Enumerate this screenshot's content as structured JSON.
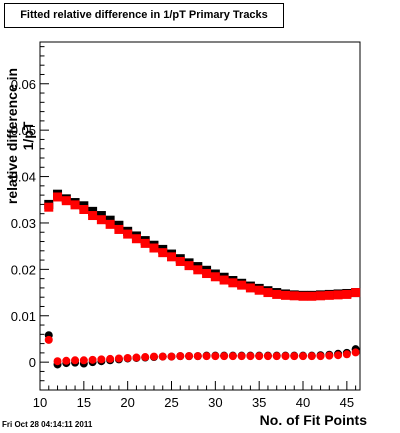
{
  "chart_data": {
    "type": "scatter",
    "title": "Fitted relative difference in 1/pT Primary Tracks",
    "xlabel": "No. of Fit Points",
    "ylabel": "relative difference in 1/pT",
    "xlim": [
      10,
      46.5
    ],
    "ylim": [
      -0.006,
      0.069
    ],
    "xticks": [
      10,
      15,
      20,
      25,
      30,
      35,
      40,
      45
    ],
    "xticklabels": [
      "10",
      "15",
      "20",
      "25",
      "30",
      "35",
      "40",
      "45"
    ],
    "yticks": [
      0,
      0.01,
      0.02,
      0.03,
      0.04,
      0.05,
      0.06
    ],
    "yticklabels": [
      "0",
      "0.01",
      "0.02",
      "0.03",
      "0.04",
      "0.05",
      "0.06"
    ],
    "grid": false,
    "legend": "none",
    "series": [
      {
        "color": "#000000",
        "x": [
          11,
          12,
          13,
          14,
          15,
          16,
          17,
          18,
          19,
          20,
          21,
          22,
          23,
          24,
          25,
          26,
          27,
          28,
          29,
          30,
          31,
          32,
          33,
          34,
          35,
          36,
          37,
          38,
          39,
          40,
          41,
          42,
          43,
          44,
          45,
          46
        ],
        "values": [
          0.034,
          0.0362,
          0.0352,
          0.0344,
          0.0337,
          0.0325,
          0.0316,
          0.0306,
          0.0295,
          0.0282,
          0.0272,
          0.0262,
          0.0252,
          0.0243,
          0.0233,
          0.0223,
          0.0214,
          0.0206,
          0.0198,
          0.019,
          0.0183,
          0.0176,
          0.017,
          0.0164,
          0.0159,
          0.0154,
          0.015,
          0.0147,
          0.0145,
          0.0144,
          0.0144,
          0.0145,
          0.0146,
          0.0147,
          0.0148,
          0.015
        ]
      },
      {
        "color": "#ff0000",
        "x": [
          11,
          12,
          13,
          14,
          15,
          16,
          17,
          18,
          19,
          20,
          21,
          22,
          23,
          24,
          25,
          26,
          27,
          28,
          29,
          30,
          31,
          32,
          33,
          34,
          35,
          36,
          37,
          38,
          39,
          40,
          41,
          42,
          43,
          44,
          45,
          46
        ],
        "values": [
          0.0334,
          0.0356,
          0.0348,
          0.0339,
          0.0329,
          0.0316,
          0.0307,
          0.0297,
          0.0286,
          0.0276,
          0.0266,
          0.0256,
          0.0246,
          0.0236,
          0.0227,
          0.0217,
          0.0208,
          0.0199,
          0.0191,
          0.0184,
          0.0177,
          0.0171,
          0.0166,
          0.016,
          0.0155,
          0.015,
          0.0146,
          0.0144,
          0.0143,
          0.0142,
          0.0142,
          0.0143,
          0.0144,
          0.0145,
          0.0146,
          0.015
        ]
      },
      {
        "color": "#000000",
        "x": [
          11,
          12,
          13,
          14,
          15,
          16,
          17,
          18,
          19,
          20,
          21,
          22,
          23,
          24,
          25,
          26,
          27,
          28,
          29,
          30,
          31,
          32,
          33,
          34,
          35,
          36,
          37,
          38,
          39,
          40,
          41,
          42,
          43,
          44,
          45,
          46
        ],
        "values": [
          0.0058,
          -0.0005,
          -0.0002,
          -0.0001,
          -0.0003,
          0.0,
          0.0002,
          0.0004,
          0.0006,
          0.0008,
          0.0009,
          0.001,
          0.0011,
          0.0012,
          0.0012,
          0.0013,
          0.0013,
          0.0013,
          0.0014,
          0.0014,
          0.0014,
          0.0014,
          0.0014,
          0.0014,
          0.0014,
          0.0014,
          0.0014,
          0.0014,
          0.0014,
          0.0014,
          0.0014,
          0.0015,
          0.0016,
          0.0018,
          0.002,
          0.0028
        ]
      },
      {
        "color": "#ff0000",
        "x": [
          11,
          12,
          13,
          14,
          15,
          16,
          17,
          18,
          19,
          20,
          21,
          22,
          23,
          24,
          25,
          26,
          27,
          28,
          29,
          30,
          31,
          32,
          33,
          34,
          35,
          36,
          37,
          38,
          39,
          40,
          41,
          42,
          43,
          44,
          45,
          46
        ],
        "values": [
          0.0048,
          0.0002,
          0.0003,
          0.0004,
          0.0004,
          0.0005,
          0.0006,
          0.0007,
          0.0008,
          0.0009,
          0.001,
          0.0011,
          0.0012,
          0.0012,
          0.0012,
          0.0013,
          0.0013,
          0.0013,
          0.0013,
          0.0013,
          0.0013,
          0.0013,
          0.0013,
          0.0013,
          0.0013,
          0.0013,
          0.0013,
          0.0013,
          0.0013,
          0.0013,
          0.0013,
          0.0013,
          0.0014,
          0.0015,
          0.0017,
          0.0021
        ]
      }
    ]
  },
  "footer": {
    "timestamp": "Fri Oct 28 04:14:11 2011"
  }
}
